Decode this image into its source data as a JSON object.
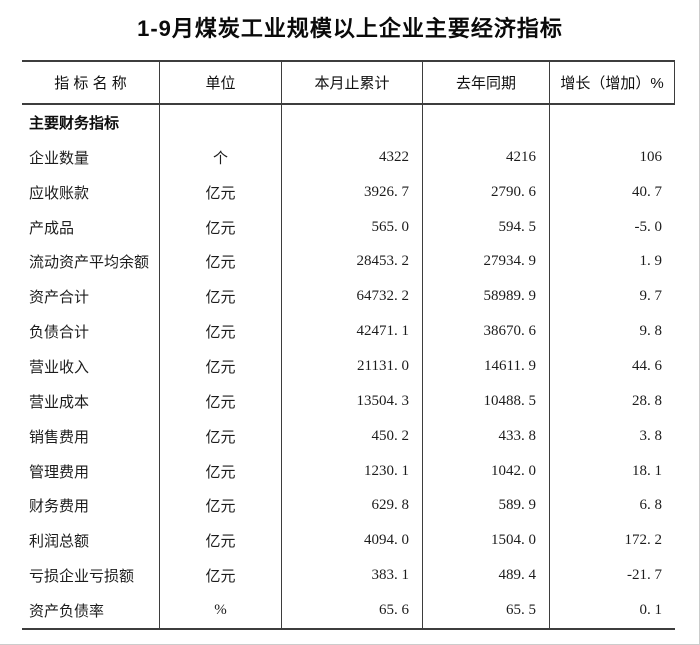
{
  "colors": {
    "border": "#3d3d3d",
    "text": "#1c1c1c",
    "title": "#0a0a0a",
    "frame": "#cccccc"
  },
  "title": "1-9月煤炭工业规模以上企业主要经济指标",
  "table": {
    "headers": [
      "指 标 名 称",
      "单位",
      "本月止累计",
      "去年同期",
      "增长（增加）%"
    ],
    "rows": [
      {
        "section": true,
        "name": "主要财务指标",
        "unit": "",
        "current": "",
        "last_year": "",
        "growth": ""
      },
      {
        "section": false,
        "name": "企业数量",
        "unit": "个",
        "current": "4322",
        "last_year": "4216",
        "growth": "106"
      },
      {
        "section": false,
        "name": "应收账款",
        "unit": "亿元",
        "current": "3926. 7",
        "last_year": "2790. 6",
        "growth": "40. 7"
      },
      {
        "section": false,
        "name": "产成品",
        "unit": "亿元",
        "current": "565. 0",
        "last_year": "594. 5",
        "growth": "-5. 0"
      },
      {
        "section": false,
        "name": "流动资产平均余额",
        "unit": "亿元",
        "current": "28453. 2",
        "last_year": "27934. 9",
        "growth": "1. 9"
      },
      {
        "section": false,
        "name": "资产合计",
        "unit": "亿元",
        "current": "64732. 2",
        "last_year": "58989. 9",
        "growth": "9. 7"
      },
      {
        "section": false,
        "name": "负债合计",
        "unit": "亿元",
        "current": "42471. 1",
        "last_year": "38670. 6",
        "growth": "9. 8"
      },
      {
        "section": false,
        "name": "营业收入",
        "unit": "亿元",
        "current": "21131. 0",
        "last_year": "14611. 9",
        "growth": "44. 6"
      },
      {
        "section": false,
        "name": "营业成本",
        "unit": "亿元",
        "current": "13504. 3",
        "last_year": "10488. 5",
        "growth": "28. 8"
      },
      {
        "section": false,
        "name": "销售费用",
        "unit": "亿元",
        "current": "450. 2",
        "last_year": "433. 8",
        "growth": "3. 8"
      },
      {
        "section": false,
        "name": "管理费用",
        "unit": "亿元",
        "current": "1230. 1",
        "last_year": "1042. 0",
        "growth": "18. 1"
      },
      {
        "section": false,
        "name": "财务费用",
        "unit": "亿元",
        "current": "629. 8",
        "last_year": "589. 9",
        "growth": "6. 8"
      },
      {
        "section": false,
        "name": "利润总额",
        "unit": "亿元",
        "current": "4094. 0",
        "last_year": "1504. 0",
        "growth": "172. 2"
      },
      {
        "section": false,
        "name": "亏损企业亏损额",
        "unit": "亿元",
        "current": "383. 1",
        "last_year": "489. 4",
        "growth": "-21. 7"
      },
      {
        "section": false,
        "name": "资产负债率",
        "unit": "%",
        "current": "65. 6",
        "last_year": "65. 5",
        "growth": "0. 1"
      }
    ]
  }
}
